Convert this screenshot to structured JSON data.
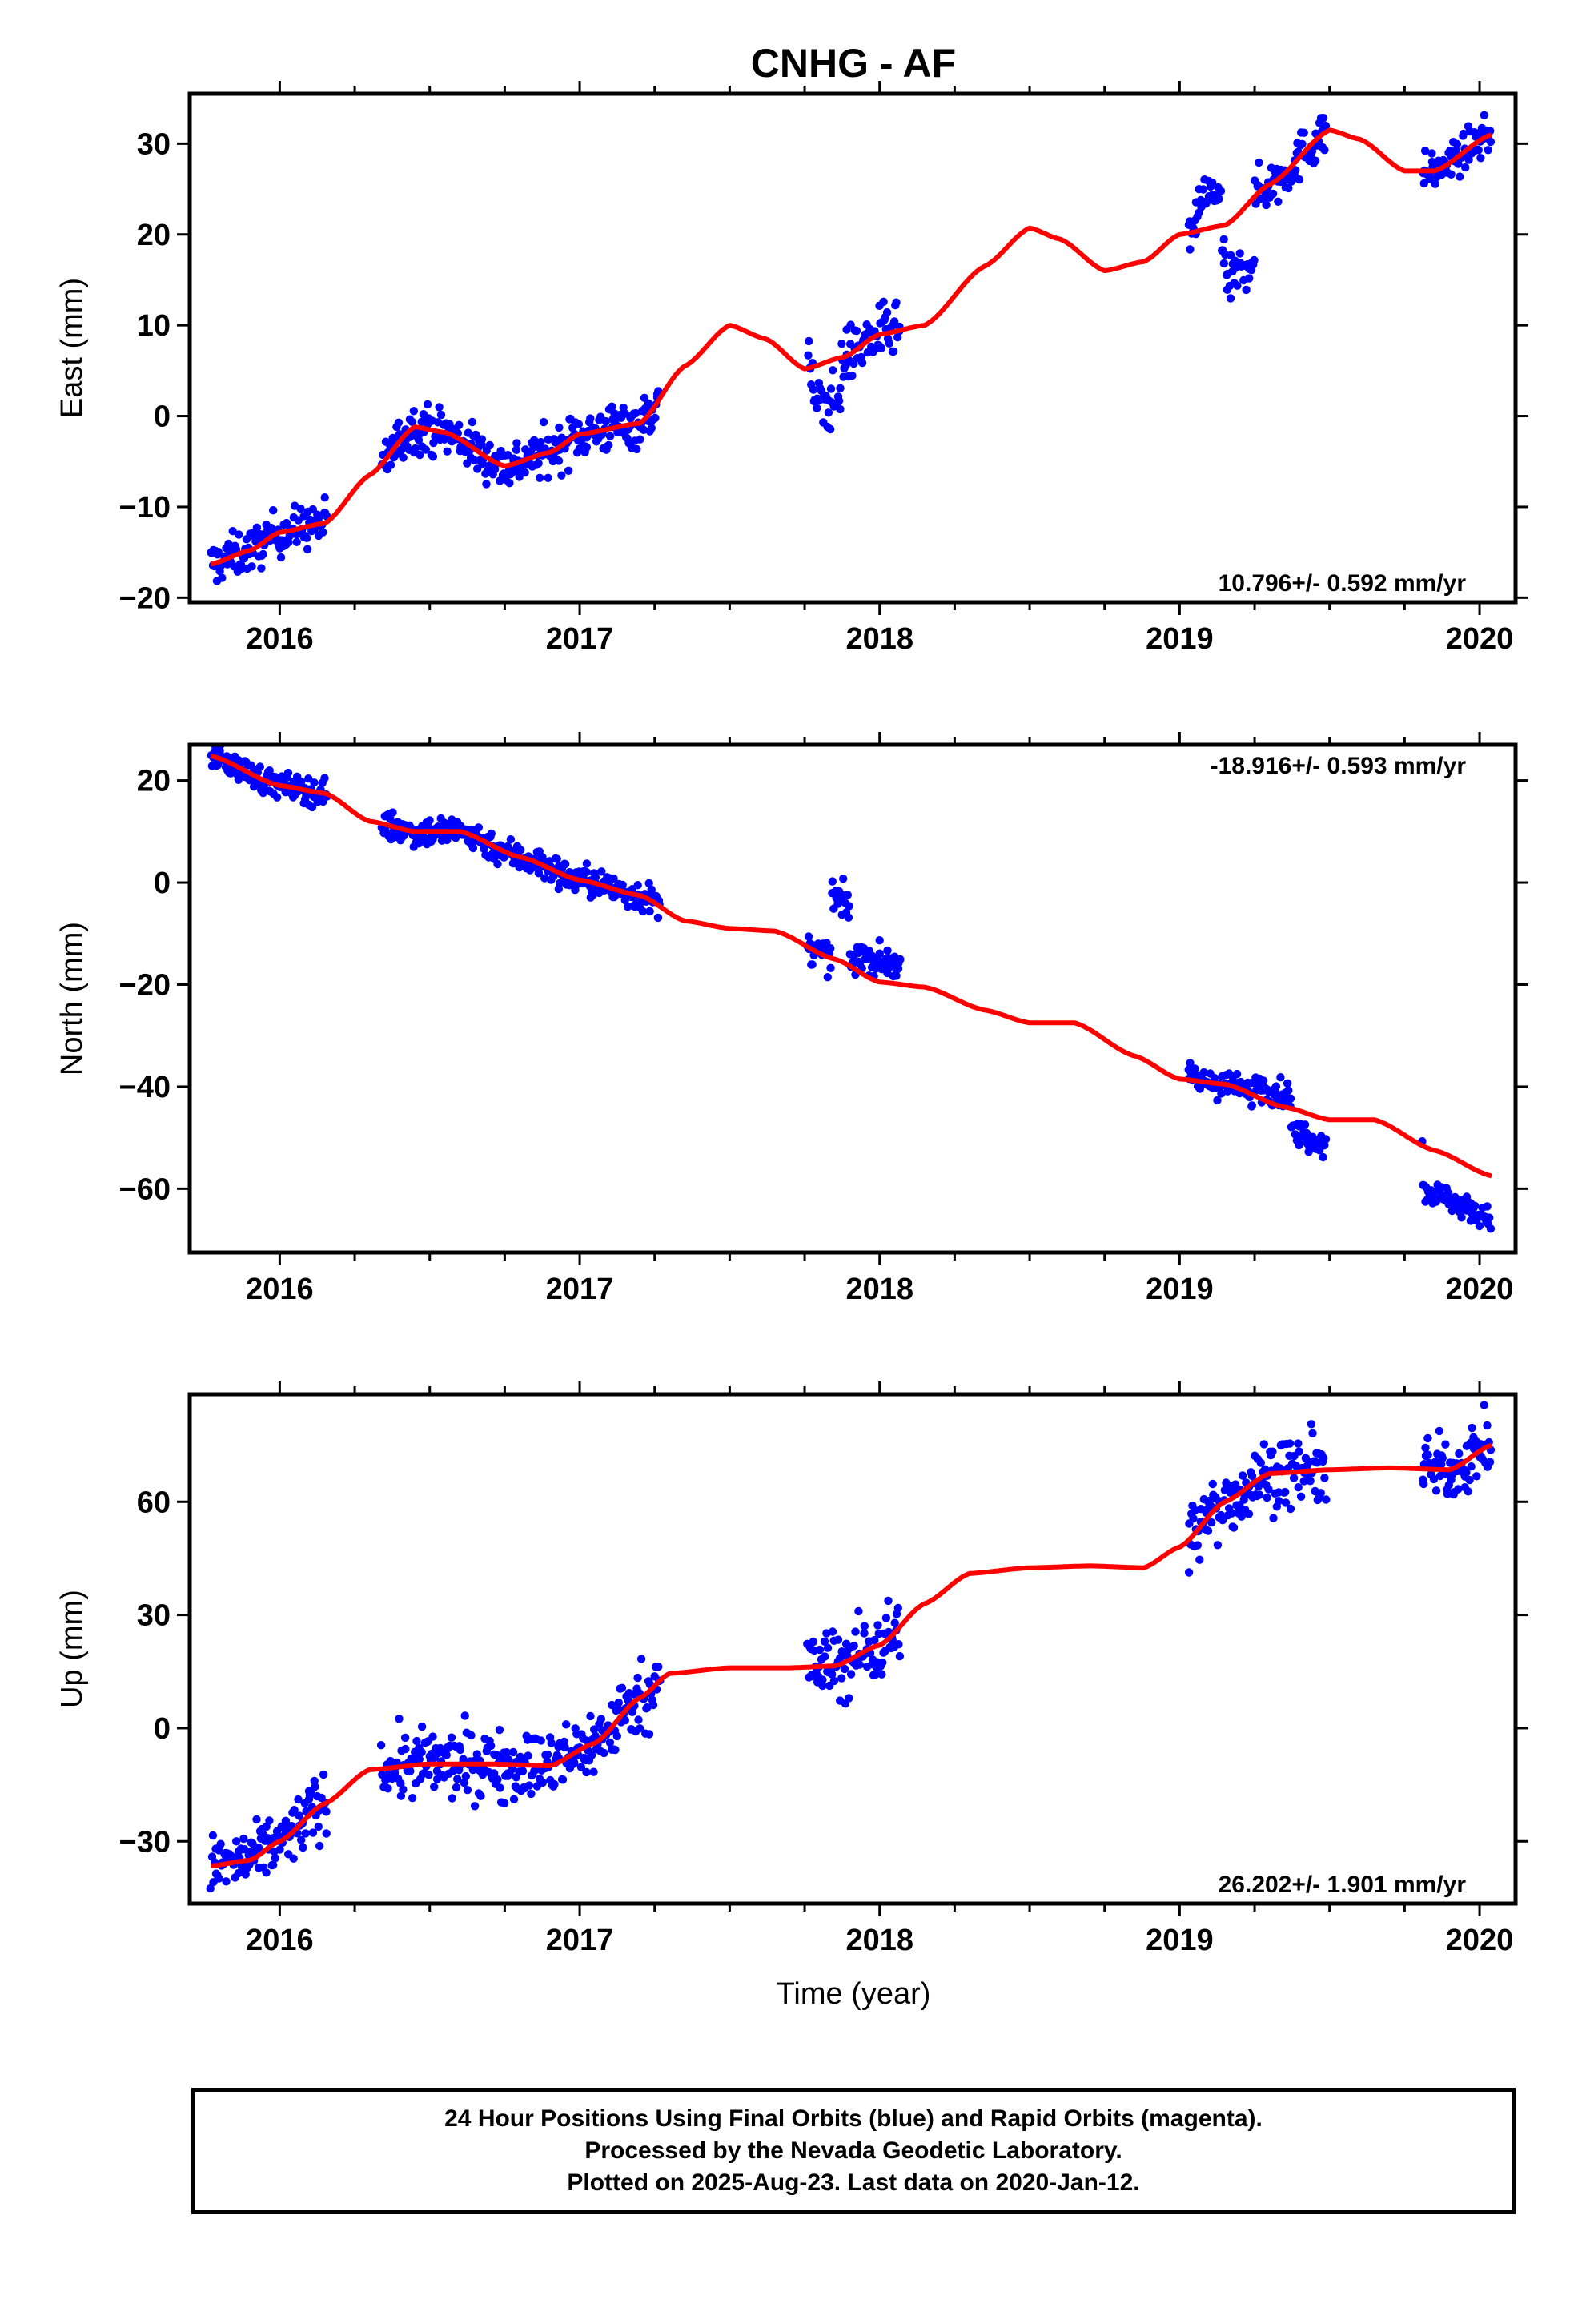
{
  "title": "CNHG - AF",
  "colors": {
    "final_orbits": "#0000ff",
    "model_fit": "#ff0000",
    "axes": "#000000"
  },
  "chart_data": [
    {
      "type": "scatter",
      "name": "east",
      "ylabel": "East (mm)",
      "xlabel": "",
      "xlim": [
        2015.7,
        2020.12
      ],
      "ylim": [
        -20.5,
        35.5
      ],
      "xticks": [
        2016,
        2017,
        2018,
        2019,
        2020
      ],
      "yticks": [
        -20,
        -10,
        0,
        10,
        20,
        30
      ],
      "ytick_labels": [
        "−20",
        "−10",
        "0",
        "10",
        "20",
        "30"
      ],
      "rate_label": "10.796+/- 0.592 mm/yr",
      "rate_position": "bottom-right",
      "segments": [
        {
          "from": 2015.77,
          "to": 2016.16,
          "spread": 1.2
        },
        {
          "from": 2016.34,
          "to": 2017.27,
          "spread": 1.3
        },
        {
          "from": 2017.76,
          "to": 2018.07,
          "spread": 1.5
        },
        {
          "from": 2019.03,
          "to": 2019.49,
          "spread": 1.3
        },
        {
          "from": 2019.81,
          "to": 2020.04,
          "spread": 1.0
        }
      ],
      "offsets": [
        {
          "from": 2017.78,
          "to": 2017.87,
          "dy": -4.5
        },
        {
          "from": 2019.06,
          "to": 2019.15,
          "dy": 3.5
        },
        {
          "from": 2019.14,
          "to": 2019.25,
          "dy": -6.5
        }
      ],
      "model_curve": [
        [
          2015.77,
          -16.3
        ],
        [
          2015.9,
          -14.8
        ],
        [
          2016.0,
          -12.8
        ],
        [
          2016.15,
          -11.8
        ],
        [
          2016.3,
          -6.5
        ],
        [
          2016.45,
          -1.2
        ],
        [
          2016.55,
          -1.8
        ],
        [
          2016.75,
          -5.5
        ],
        [
          2016.9,
          -4.0
        ],
        [
          2017.0,
          -2.0
        ],
        [
          2017.2,
          -0.8
        ],
        [
          2017.35,
          5.5
        ],
        [
          2017.5,
          10.0
        ],
        [
          2017.62,
          8.5
        ],
        [
          2017.75,
          5.2
        ],
        [
          2017.88,
          6.5
        ],
        [
          2018.0,
          9.0
        ],
        [
          2018.15,
          10.0
        ],
        [
          2018.35,
          16.5
        ],
        [
          2018.5,
          20.7
        ],
        [
          2018.6,
          19.5
        ],
        [
          2018.75,
          16.0
        ],
        [
          2018.88,
          17.0
        ],
        [
          2019.0,
          20.0
        ],
        [
          2019.15,
          21.0
        ],
        [
          2019.3,
          25.5
        ],
        [
          2019.5,
          31.5
        ],
        [
          2019.6,
          30.5
        ],
        [
          2019.75,
          27.0
        ],
        [
          2019.85,
          27.0
        ],
        [
          2020.04,
          31.0
        ]
      ]
    },
    {
      "type": "scatter",
      "name": "north",
      "ylabel": "North (mm)",
      "xlabel": "",
      "xlim": [
        2015.7,
        2020.12
      ],
      "ylim": [
        -72.5,
        27
      ],
      "xticks": [
        2016,
        2017,
        2018,
        2019,
        2020
      ],
      "yticks": [
        -60,
        -40,
        -20,
        0,
        20
      ],
      "ytick_labels": [
        "−60",
        "−40",
        "−20",
        "0",
        "20"
      ],
      "rate_label": "-18.916+/- 0.593 mm/yr",
      "rate_position": "top-right",
      "segments": [
        {
          "from": 2015.77,
          "to": 2016.16,
          "spread": 1.3
        },
        {
          "from": 2016.34,
          "to": 2017.27,
          "spread": 1.5
        },
        {
          "from": 2017.76,
          "to": 2018.07,
          "spread": 1.5
        },
        {
          "from": 2019.03,
          "to": 2019.49,
          "spread": 1.3
        },
        {
          "from": 2019.81,
          "to": 2020.04,
          "spread": 1.2
        }
      ],
      "offsets": [
        {
          "from": 2017.84,
          "to": 2017.9,
          "dy": 12.0
        },
        {
          "from": 2017.92,
          "to": 2018.07,
          "dy": 4.0
        },
        {
          "from": 2019.25,
          "to": 2019.37,
          "dy": 2.5
        },
        {
          "from": 2019.37,
          "to": 2019.49,
          "dy": -4.5
        },
        {
          "from": 2019.81,
          "to": 2020.04,
          "dy": -8.5
        }
      ],
      "model_curve": [
        [
          2015.77,
          24.8
        ],
        [
          2016.0,
          19.0
        ],
        [
          2016.15,
          17.5
        ],
        [
          2016.3,
          12.0
        ],
        [
          2016.45,
          10.0
        ],
        [
          2016.6,
          10.0
        ],
        [
          2016.8,
          5.0
        ],
        [
          2017.0,
          0.5
        ],
        [
          2017.2,
          -2.5
        ],
        [
          2017.35,
          -7.5
        ],
        [
          2017.5,
          -9.0
        ],
        [
          2017.65,
          -9.5
        ],
        [
          2017.85,
          -15.0
        ],
        [
          2018.0,
          -19.5
        ],
        [
          2018.15,
          -20.5
        ],
        [
          2018.35,
          -25.0
        ],
        [
          2018.5,
          -27.5
        ],
        [
          2018.65,
          -27.5
        ],
        [
          2018.85,
          -34.0
        ],
        [
          2019.0,
          -38.5
        ],
        [
          2019.15,
          -39.5
        ],
        [
          2019.35,
          -44.0
        ],
        [
          2019.5,
          -46.5
        ],
        [
          2019.65,
          -46.5
        ],
        [
          2019.85,
          -52.5
        ],
        [
          2020.04,
          -57.5
        ]
      ]
    },
    {
      "type": "scatter",
      "name": "up",
      "ylabel": "Up (mm)",
      "xlabel": "Time (year)",
      "xlim": [
        2015.7,
        2020.12
      ],
      "ylim": [
        -46.5,
        88.5
      ],
      "xticks": [
        2016,
        2017,
        2018,
        2019,
        2020
      ],
      "yticks": [
        -30,
        0,
        30,
        60
      ],
      "ytick_labels": [
        "−30",
        "0",
        "30",
        "60"
      ],
      "rate_label": "26.202+/- 1.901 mm/yr",
      "rate_position": "bottom-right",
      "segments": [
        {
          "from": 2015.77,
          "to": 2016.16,
          "spread": 4.0
        },
        {
          "from": 2016.34,
          "to": 2017.27,
          "spread": 4.5
        },
        {
          "from": 2017.76,
          "to": 2018.07,
          "spread": 5.0
        },
        {
          "from": 2019.03,
          "to": 2019.49,
          "spread": 4.5
        },
        {
          "from": 2019.81,
          "to": 2020.04,
          "spread": 4.0
        }
      ],
      "offsets": [],
      "model_curve": [
        [
          2015.77,
          -36.5
        ],
        [
          2015.9,
          -35.0
        ],
        [
          2016.0,
          -30.0
        ],
        [
          2016.15,
          -20.0
        ],
        [
          2016.3,
          -11.0
        ],
        [
          2016.5,
          -9.5
        ],
        [
          2016.7,
          -9.5
        ],
        [
          2016.9,
          -10.0
        ],
        [
          2017.05,
          -4.0
        ],
        [
          2017.2,
          8.0
        ],
        [
          2017.3,
          14.5
        ],
        [
          2017.5,
          16.0
        ],
        [
          2017.7,
          16.0
        ],
        [
          2017.85,
          16.5
        ],
        [
          2018.0,
          22.0
        ],
        [
          2018.15,
          33.0
        ],
        [
          2018.3,
          41.0
        ],
        [
          2018.5,
          42.5
        ],
        [
          2018.7,
          43.0
        ],
        [
          2018.88,
          42.5
        ],
        [
          2019.0,
          48.0
        ],
        [
          2019.15,
          60.0
        ],
        [
          2019.3,
          67.5
        ],
        [
          2019.5,
          68.5
        ],
        [
          2019.7,
          69.0
        ],
        [
          2019.9,
          68.5
        ],
        [
          2020.04,
          75.0
        ]
      ]
    }
  ],
  "footer": {
    "line1": "24 Hour Positions Using Final Orbits (blue) and Rapid Orbits (magenta).",
    "line2": "Processed by the Nevada Geodetic Laboratory.",
    "line3": "Plotted on 2025-Aug-23. Last data on 2020-Jan-12."
  }
}
